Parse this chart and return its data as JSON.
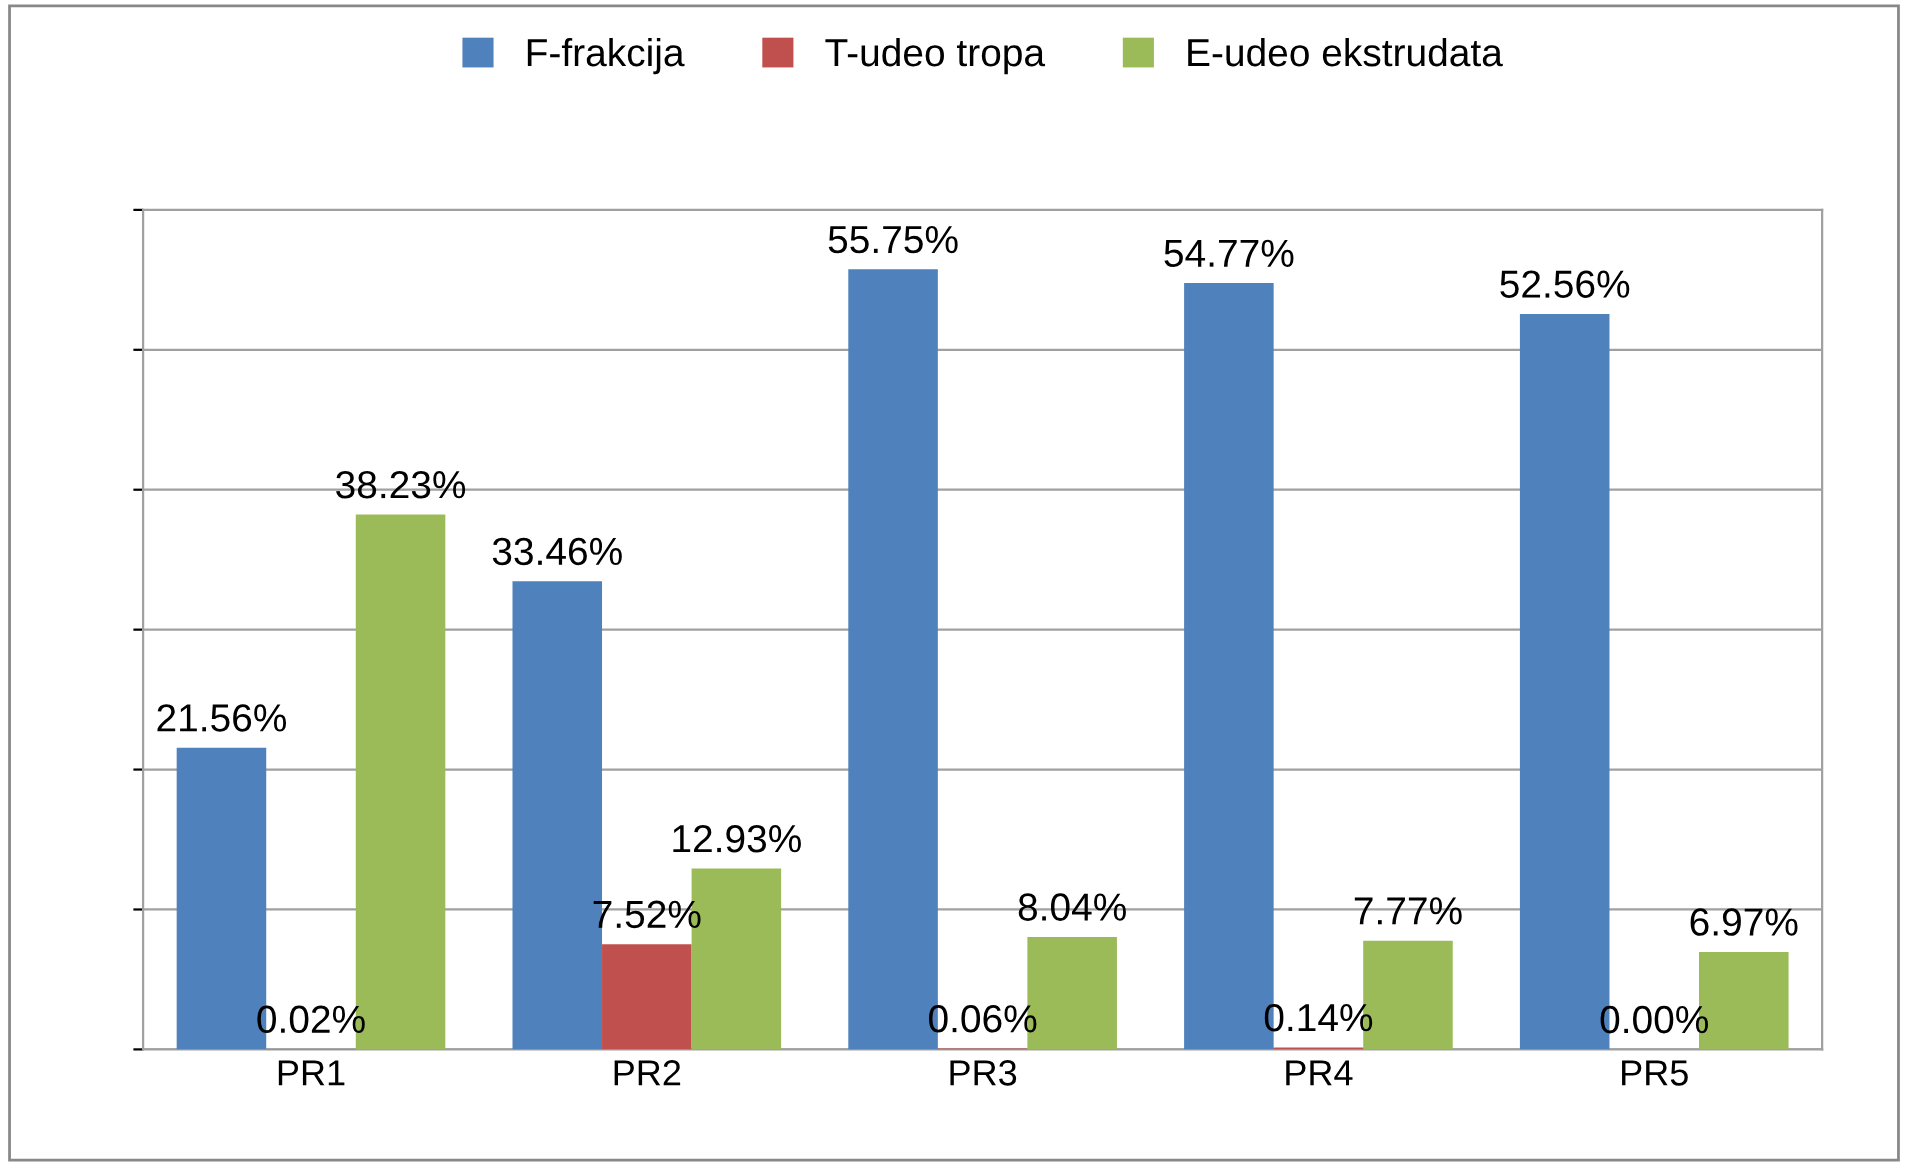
{
  "chart_data": {
    "type": "bar",
    "categories": [
      "PR1",
      "PR2",
      "PR3",
      "PR4",
      "PR5"
    ],
    "series": [
      {
        "name": "F-frakcija",
        "color": "#4f81bd",
        "values": [
          21.56,
          33.46,
          55.75,
          54.77,
          52.56
        ],
        "value_labels": [
          "21.56%",
          "33.46%",
          "55.75%",
          "54.77%",
          "52.56%"
        ]
      },
      {
        "name": "T-udeo tropa",
        "color": "#c0504d",
        "values": [
          0.02,
          7.52,
          0.06,
          0.14,
          0.0
        ],
        "value_labels": [
          "0.02%",
          "7.52%",
          "0.06%",
          "0.14%",
          "0.00%"
        ]
      },
      {
        "name": "E-udeo ekstrudata",
        "color": "#9bbb59",
        "values": [
          38.23,
          12.93,
          8.04,
          7.77,
          6.97
        ],
        "value_labels": [
          "38.23%",
          "12.93%",
          "8.04%",
          "7.77%",
          "6.97%"
        ]
      }
    ],
    "ylim": [
      0,
      60
    ],
    "yticks": [
      {
        "value": 0,
        "label": null
      },
      {
        "value": 10,
        "label": null
      },
      {
        "value": 20,
        "label": null
      },
      {
        "value": 30,
        "label": null
      },
      {
        "value": 40,
        "label": null
      },
      {
        "value": 50,
        "label": null
      },
      {
        "value": 60,
        "label": null
      }
    ],
    "tick_labels": "x",
    "grid": "y",
    "legend": "top"
  }
}
